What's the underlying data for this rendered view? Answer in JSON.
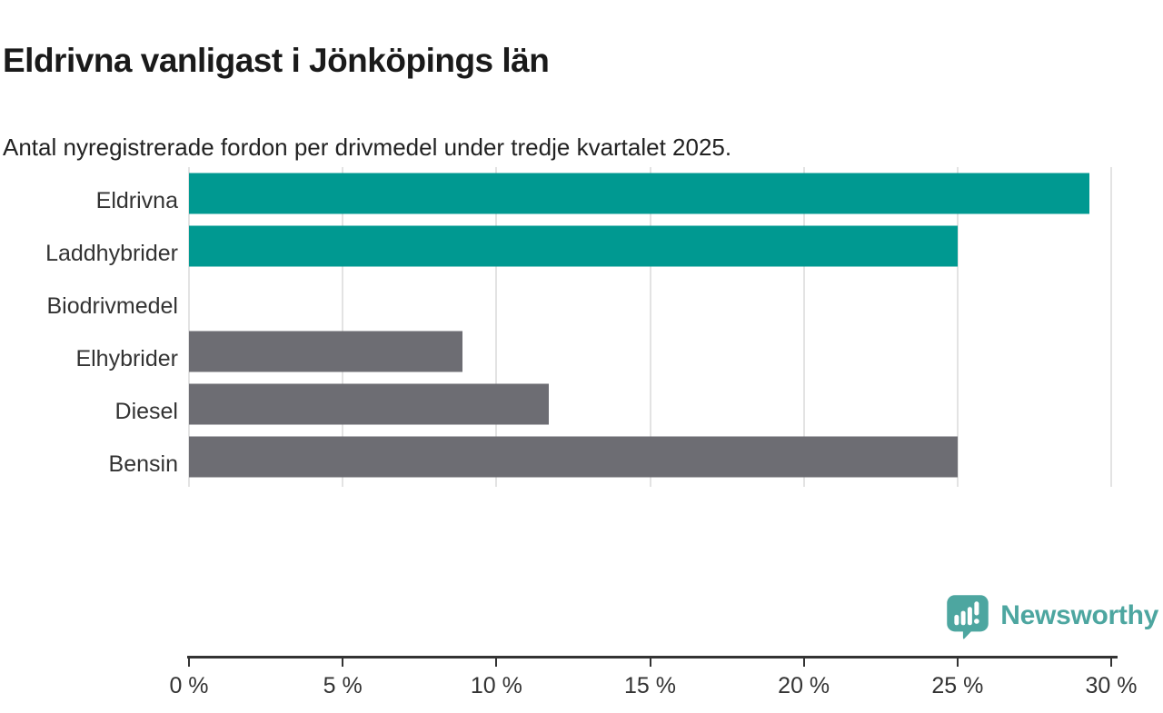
{
  "title": "Eldrivna vanligast i Jönköpings län",
  "subtitle": "Antal nyregistrerade fordon per drivmedel under tredje kvartalet 2025.",
  "colors": {
    "highlight_teal": "#009991",
    "neutral_gray": "#6d6d73",
    "gridline": "#e3e3e3",
    "axis": "#333333",
    "title_text": "#1a1a1a",
    "label_text": "#333333",
    "brand_teal": "#4da6a0"
  },
  "chart_data": {
    "type": "bar",
    "orientation": "horizontal",
    "title": "Eldrivna vanligast i Jönköpings län",
    "subtitle": "Antal nyregistrerade fordon per drivmedel under tredje kvartalet 2025.",
    "categories": [
      "Eldrivna",
      "Laddhybrider",
      "Biodrivmedel",
      "Elhybrider",
      "Diesel",
      "Bensin"
    ],
    "values": [
      29.3,
      25.0,
      0,
      8.9,
      11.7,
      25.0
    ],
    "unit": "%",
    "bar_colors": [
      "#009991",
      "#009991",
      "#009991",
      "#6d6d73",
      "#6d6d73",
      "#6d6d73"
    ],
    "xlim": [
      0,
      30
    ],
    "xticks": [
      0,
      5,
      10,
      15,
      20,
      25,
      30
    ],
    "xtick_labels": [
      "0 %",
      "5 %",
      "10 %",
      "15 %",
      "20 %",
      "25 %",
      "30 %"
    ],
    "grid": true,
    "legend": false,
    "value_labels": false
  },
  "footer": {
    "brand": "Newsworthy",
    "logo_icon": "bar-chart-speech-bubble-icon"
  }
}
